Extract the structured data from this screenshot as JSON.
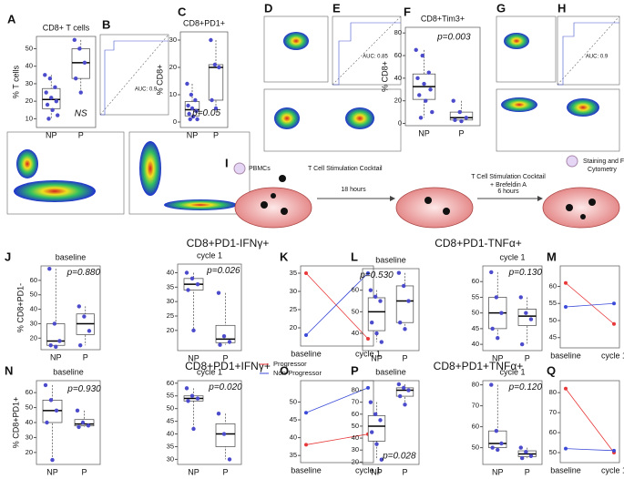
{
  "panel_labels": [
    "A",
    "B",
    "C",
    "D",
    "E",
    "F",
    "G",
    "H",
    "I",
    "J",
    "K",
    "L",
    "M",
    "N",
    "O",
    "P",
    "Q"
  ],
  "headers": [
    "CD8+PD1-IFNγ+",
    "CD8+PD1-TNFα+",
    "CD8+PD1+IFNγ+",
    "CD8+PD1+TNFα+"
  ],
  "roc": [
    "AUC: 0.9",
    "AUC: 0.85",
    "AUC: 0.9"
  ],
  "diagram": {
    "pbmc": "PBMCs",
    "cocktail": "T Cell Stimulation Cocktail",
    "t1": "18 hours",
    "cocktail2": "T Cell Stimulation Cocktail",
    "brefeldin": "+ Brefeldin A",
    "t2": "6 hours",
    "stain": "Staining and Flow",
    "stain2": "Cytometry"
  },
  "chart_data": [
    {
      "type": "box",
      "title": "CD8+ T cells",
      "y_label": "% T cells",
      "categories": [
        "NP",
        "P"
      ],
      "values": [
        [
          35,
          33,
          28,
          25,
          22,
          20,
          18,
          15,
          12,
          10
        ],
        [
          55,
          50,
          42,
          33,
          25
        ]
      ],
      "annotation": "NS",
      "color": "#4b4bcc",
      "ylim": [
        5,
        57
      ],
      "yticks": [
        10,
        20,
        30,
        40,
        50
      ]
    },
    {
      "type": "box",
      "title": "CD8+PD1+",
      "y_label": "% CD8+",
      "categories": [
        "NP",
        "P"
      ],
      "values": [
        [
          14,
          10,
          8,
          6,
          5,
          4,
          3,
          2,
          1,
          1
        ],
        [
          30,
          21,
          20,
          8,
          5
        ]
      ],
      "annotation": "p=0.05",
      "color": "#4b4bcc",
      "ylim": [
        -2,
        33
      ],
      "yticks": [
        0,
        10,
        20,
        30
      ]
    },
    {
      "type": "box",
      "title": "CD8+Tim3+",
      "y_label": "% CD8+",
      "categories": [
        "NP",
        "P"
      ],
      "values": [
        [
          65,
          60,
          45,
          40,
          35,
          30,
          25,
          20,
          10,
          5
        ],
        [
          20,
          10,
          5,
          3,
          2
        ]
      ],
      "annotation": "p=0.003",
      "color": "#4b4bcc",
      "ylim": [
        -2,
        85
      ],
      "yticks": [
        0,
        20,
        40,
        60,
        80
      ]
    },
    {
      "type": "box",
      "title": "baseline",
      "y_label": "% CD8+PD1-",
      "categories": [
        "NP",
        "P"
      ],
      "values": [
        [
          68,
          30,
          18,
          15,
          14
        ],
        [
          42,
          35,
          25,
          15
        ]
      ],
      "annotation": "p=0.880",
      "color": "#4b4bcc",
      "ylim": [
        12,
        70
      ],
      "yticks": [
        20,
        30,
        40,
        50,
        60
      ]
    },
    {
      "type": "box",
      "title": "cycle 1",
      "categories": [
        "NP",
        "P"
      ],
      "values": [
        [
          40,
          38,
          36,
          34,
          20
        ],
        [
          33,
          18,
          16,
          15
        ]
      ],
      "annotation": "p=0.026",
      "color": "#4b4bcc",
      "ylim": [
        13,
        43
      ],
      "yticks": [
        20,
        25,
        30,
        35,
        40
      ]
    },
    {
      "type": "line",
      "categories": [
        "baseline",
        "cycle 1"
      ],
      "series": [
        {
          "name": "Progressor",
          "color": "#e8393a",
          "values": [
            35,
            17
          ]
        },
        {
          "name": "Non-Progressor",
          "color": "#3b4bd8",
          "values": [
            18,
            35
          ]
        }
      ],
      "ylim": [
        15,
        37
      ],
      "yticks": [
        20,
        25,
        30,
        35
      ]
    },
    {
      "type": "box",
      "title": "baseline",
      "categories": [
        "NP",
        "P"
      ],
      "values": [
        [
          60,
          57,
          55,
          45,
          40,
          36
        ],
        [
          68,
          62,
          55,
          45,
          42
        ]
      ],
      "annotation": "p=0.530",
      "color": "#4b4bcc",
      "ylim": [
        32,
        70
      ],
      "yticks": [
        40,
        50,
        60
      ]
    },
    {
      "type": "box",
      "title": "cycle 1",
      "categories": [
        "NP",
        "P"
      ],
      "values": [
        [
          63,
          55,
          50,
          45,
          42
        ],
        [
          55,
          50,
          48,
          40
        ]
      ],
      "annotation": "p=0.130",
      "color": "#4b4bcc",
      "ylim": [
        38,
        65
      ],
      "yticks": [
        40,
        45,
        50,
        55,
        60
      ]
    },
    {
      "type": "line",
      "categories": [
        "baseline",
        "cycle 1"
      ],
      "series": [
        {
          "color": "#e8393a",
          "values": [
            61,
            49
          ]
        },
        {
          "color": "#3b4bd8",
          "values": [
            54,
            55
          ]
        }
      ],
      "ylim": [
        42,
        66
      ],
      "yticks": [
        45,
        50,
        55,
        60
      ]
    },
    {
      "type": "box",
      "title": "baseline",
      "y_label": "% CD8+PD1+",
      "categories": [
        "NP",
        "P"
      ],
      "values": [
        [
          65,
          55,
          48,
          40,
          15
        ],
        [
          48,
          40,
          38,
          37
        ]
      ],
      "annotation": "p=0.930",
      "color": "#4b4bcc",
      "ylim": [
        12,
        68
      ],
      "yticks": [
        20,
        30,
        40,
        50,
        60
      ]
    },
    {
      "type": "box",
      "title": "cycle 1",
      "categories": [
        "NP",
        "P"
      ],
      "values": [
        [
          58,
          55,
          54,
          53,
          42
        ],
        [
          48,
          40,
          30
        ]
      ],
      "annotation": "p=0.020",
      "color": "#4b4bcc",
      "ylim": [
        28,
        61
      ],
      "yticks": [
        30,
        35,
        40,
        45,
        50,
        55,
        60
      ]
    },
    {
      "type": "line",
      "categories": [
        "baseline",
        "cycle 1"
      ],
      "series": [
        {
          "color": "#e8393a",
          "values": [
            38,
            41
          ]
        },
        {
          "color": "#3b4bd8",
          "values": [
            47,
            54
          ]
        }
      ],
      "ylim": [
        33,
        56
      ],
      "yticks": [
        35,
        40,
        45,
        50
      ]
    },
    {
      "type": "box",
      "title": "baseline",
      "categories": [
        "NP",
        "P"
      ],
      "values": [
        [
          70,
          60,
          55,
          45,
          35,
          22
        ],
        [
          85,
          82,
          80,
          75,
          68
        ]
      ],
      "annotation": "p=0.028",
      "color": "#4b4bcc",
      "ylim": [
        18,
        88
      ],
      "yticks": [
        20,
        30,
        40,
        50,
        60,
        70,
        80
      ]
    },
    {
      "type": "box",
      "title": "cycle 1",
      "categories": [
        "NP",
        "P"
      ],
      "values": [
        [
          80,
          58,
          52,
          50,
          49
        ],
        [
          50,
          48,
          46,
          45
        ]
      ],
      "annotation": "p=0.120",
      "color": "#4b4bcc",
      "ylim": [
        42,
        82
      ],
      "yticks": [
        50,
        60,
        70,
        80
      ]
    },
    {
      "type": "line",
      "categories": [
        "baseline",
        "cycle 1"
      ],
      "series": [
        {
          "color": "#e8393a",
          "values": [
            82,
            50
          ]
        },
        {
          "color": "#3b4bd8",
          "values": [
            52,
            51
          ]
        }
      ],
      "ylim": [
        45,
        86
      ],
      "yticks": [
        50,
        60,
        70,
        80
      ]
    }
  ]
}
